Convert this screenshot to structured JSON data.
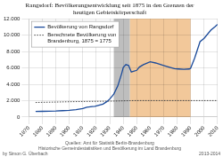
{
  "chart_data": {
    "type": "line",
    "title": "Rangsdorf: Bevölkerungsentwicklung seit 1875 in den Grenzen der\nheutigen Gebietskörperschaft",
    "source": "Quellen: Amt für Statistik Berlin-Brandenburg\nHistorische Gemeindestatistiken und Bevölkerung im Land Brandenburg",
    "annotations": [
      "by Simon G. Überbach",
      "2013-2014"
    ],
    "xlim": [
      1870,
      2010
    ],
    "xticks": [
      1870,
      1880,
      1890,
      1900,
      1910,
      1920,
      1930,
      1940,
      1950,
      1960,
      1970,
      1980,
      1990,
      2000,
      2010
    ],
    "ylim": [
      0,
      12000
    ],
    "yticks": [
      0,
      {
        "value": 2000,
        "label": "2.000"
      },
      {
        "value": 4000,
        "label": "4.000"
      },
      {
        "value": 6000,
        "label": "6.000"
      },
      {
        "value": 8000,
        "label": "8.000"
      },
      {
        "value": 10000,
        "label": "10.000"
      },
      {
        "value": 12000,
        "label": "12.000"
      }
    ],
    "grid": true,
    "legend": "upper left",
    "shaded_periods": [
      {
        "range": [
          1933,
          1945
        ],
        "color": "#bebebe"
      },
      {
        "range": [
          1945,
          1990
        ],
        "color": "#f2c89a"
      }
    ],
    "series": [
      {
        "name": "Bevölkerung von Rangsdorf",
        "color": "#1a4a9a",
        "line_style": "solid",
        "x": [
          1875,
          1880,
          1885,
          1890,
          1895,
          1900,
          1905,
          1910,
          1913,
          1917,
          1919,
          1925,
          1928,
          1930,
          1933,
          1936,
          1939,
          1940,
          1942,
          1944,
          1945,
          1946,
          1950,
          1952,
          1955,
          1960,
          1964,
          1970,
          1975,
          1978,
          1981,
          1985,
          1989,
          1990,
          1993,
          1997,
          2000,
          2005,
          2008,
          2010
        ],
        "values": [
          680,
          700,
          720,
          740,
          780,
          830,
          900,
          1030,
          1200,
          1280,
          1300,
          1580,
          1900,
          2200,
          2800,
          3800,
          5400,
          6050,
          6400,
          6300,
          5900,
          5500,
          5700,
          6100,
          6400,
          6750,
          6600,
          6300,
          6050,
          5900,
          5870,
          5830,
          5870,
          5950,
          7200,
          9200,
          9600,
          10600,
          11000,
          11300
        ]
      },
      {
        "name": "Berechnete Bevölkerung von\nBrandenburg, 1875 = 1775",
        "color": "#444444",
        "line_style": "dotted",
        "x": [
          1875,
          1880,
          1890,
          1900,
          1910,
          1920,
          1930,
          1933,
          1940,
          1945,
          1950,
          1960,
          1970,
          1980,
          1990,
          2000,
          2010
        ],
        "values": [
          1775,
          1800,
          1830,
          1870,
          1900,
          1920,
          1940,
          1950,
          1980,
          2000,
          2010,
          2010,
          2010,
          2010,
          2010,
          2010,
          2010
        ]
      }
    ]
  }
}
